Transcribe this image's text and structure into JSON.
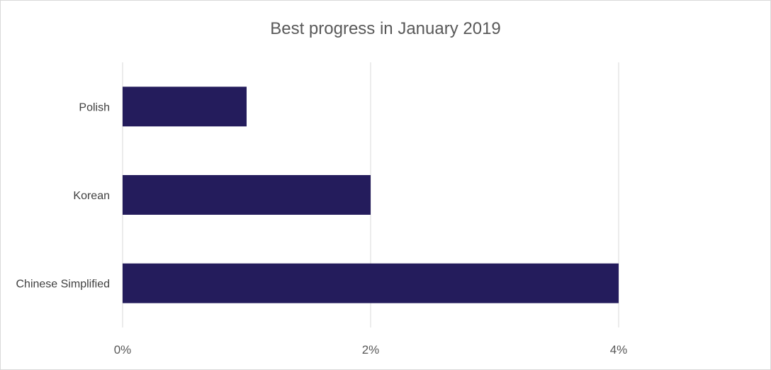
{
  "chart_data": {
    "type": "bar",
    "orientation": "horizontal",
    "title": "Best progress in January 2019",
    "categories": [
      "Polish",
      "Korean",
      "Chinese Simplified"
    ],
    "values": [
      1,
      2,
      4
    ],
    "value_unit": "%",
    "xlim": [
      0,
      5
    ],
    "x_ticks": [
      0,
      2,
      4
    ],
    "x_tick_labels": [
      "0%",
      "2%",
      "4%"
    ],
    "xlabel": "",
    "ylabel": "",
    "grid": "vertical",
    "legend": "none",
    "colors": {
      "bar": "#241c5c",
      "grid": "#d9d9d9",
      "title": "#595959",
      "label": "#404040"
    }
  }
}
